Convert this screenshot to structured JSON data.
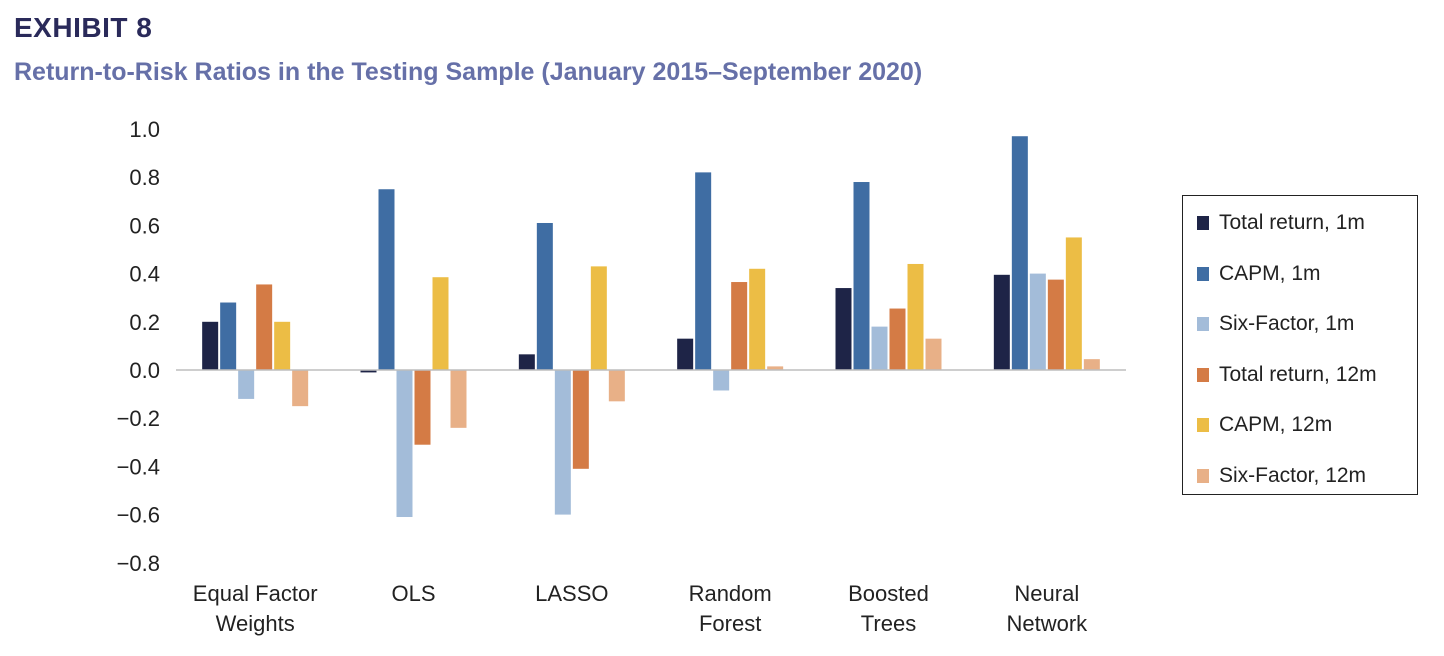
{
  "header": {
    "exhibit": "EXHIBIT 8",
    "subtitle": "Return-to-Risk Ratios in the Testing Sample (January 2015–September 2020)"
  },
  "chart_data": {
    "type": "bar",
    "categories": [
      [
        "Equal Factor",
        "Weights"
      ],
      [
        "OLS"
      ],
      [
        "LASSO"
      ],
      [
        "Random",
        "Forest"
      ],
      [
        "Boosted",
        "Trees"
      ],
      [
        "Neural",
        "Network"
      ]
    ],
    "series": [
      {
        "name": "Total return, 1m",
        "color": "#1e2447",
        "values": [
          0.2,
          -0.01,
          0.065,
          0.13,
          0.34,
          0.395
        ]
      },
      {
        "name": "CAPM, 1m",
        "color": "#3f6da3",
        "values": [
          0.28,
          0.75,
          0.61,
          0.82,
          0.78,
          0.97
        ]
      },
      {
        "name": "Six-Factor, 1m",
        "color": "#a3bcd9",
        "values": [
          -0.12,
          -0.61,
          -0.6,
          -0.085,
          0.18,
          0.4
        ]
      },
      {
        "name": "Total return, 12m",
        "color": "#d47b45",
        "values": [
          0.355,
          -0.31,
          -0.41,
          0.365,
          0.255,
          0.375
        ]
      },
      {
        "name": "CAPM, 12m",
        "color": "#ecbd45",
        "values": [
          0.2,
          0.385,
          0.43,
          0.42,
          0.44,
          0.55
        ]
      },
      {
        "name": "Six-Factor, 12m",
        "color": "#e8b087",
        "values": [
          -0.15,
          -0.24,
          -0.13,
          0.015,
          0.13,
          0.045
        ]
      }
    ],
    "yticks": [
      "1.0",
      "0.8",
      "0.6",
      "0.4",
      "0.2",
      "0.0",
      "−0.2",
      "−0.4",
      "−0.6",
      "−0.8"
    ],
    "ylim": [
      -0.8,
      1.0
    ],
    "legend_position": "right",
    "grid": false
  }
}
